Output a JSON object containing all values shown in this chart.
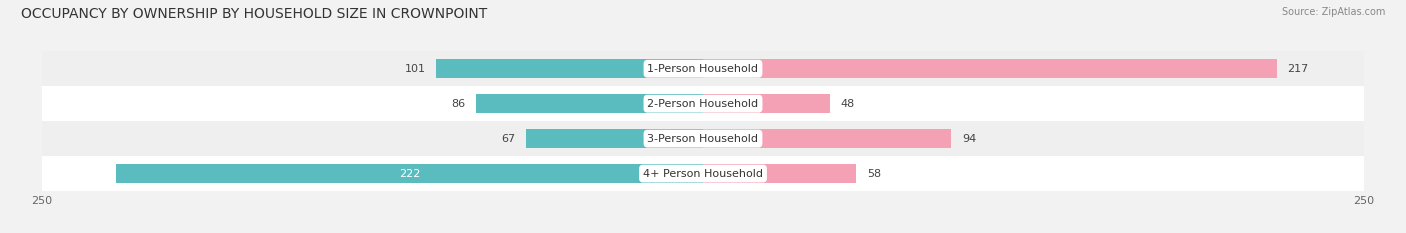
{
  "title": "OCCUPANCY BY OWNERSHIP BY HOUSEHOLD SIZE IN CROWNPOINT",
  "source": "Source: ZipAtlas.com",
  "categories": [
    "1-Person Household",
    "2-Person Household",
    "3-Person Household",
    "4+ Person Household"
  ],
  "owner_values": [
    101,
    86,
    67,
    222
  ],
  "renter_values": [
    217,
    48,
    94,
    58
  ],
  "owner_color": "#5bbcbf",
  "renter_color": "#f4a0b5",
  "xlim": 250,
  "bar_height": 0.55,
  "title_fontsize": 10,
  "label_fontsize": 8,
  "axis_fontsize": 8,
  "legend_fontsize": 8,
  "row_colors": [
    "#efefef",
    "#ffffff",
    "#efefef",
    "#ffffff"
  ]
}
